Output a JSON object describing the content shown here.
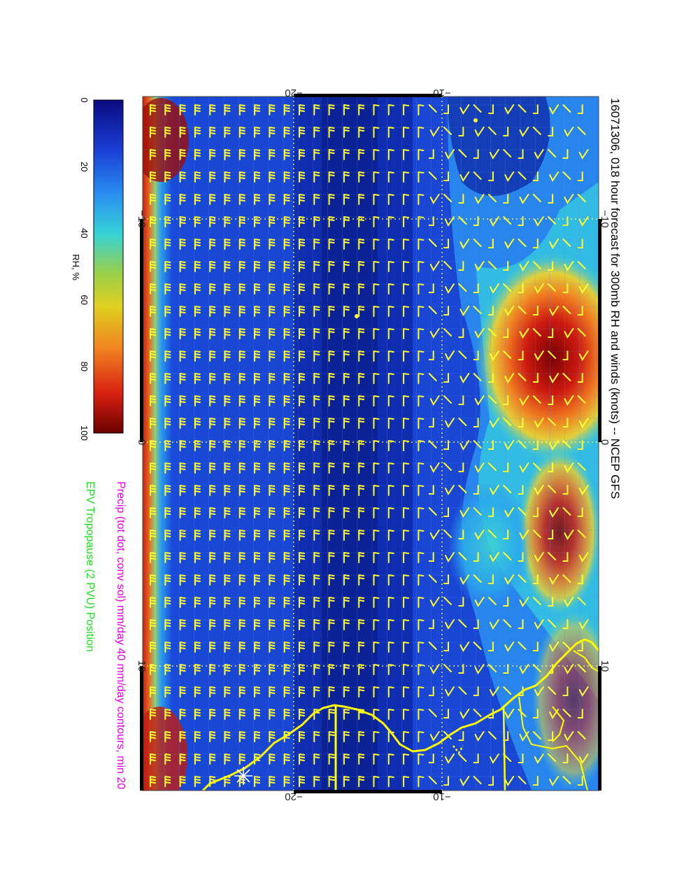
{
  "title": "16071306, 018 hour forecast for 300mb RH and winds (knots) -- NCEP GFS",
  "precip_label": "Precip (tot dot, conv sol) mm/day 40 mm/day contours, min 20",
  "tropopause_label": "EPV Tropopause (2 PVU) Position",
  "colorbar": {
    "title": "RH, %",
    "ticks": [
      "0",
      "20",
      "40",
      "60",
      "80",
      "100"
    ],
    "colors": [
      "#0a0a80",
      "#1a3fd6",
      "#2a8cf0",
      "#35d2d8",
      "#9ad04a",
      "#e0d020",
      "#f08020",
      "#d82010",
      "#6a0000"
    ]
  },
  "axes": {
    "top_ticks": [
      "−20",
      "−10"
    ],
    "bottom_ticks": [
      "−20",
      "−10"
    ],
    "left_ticks": [
      "−10",
      "0",
      "10"
    ],
    "right_ticks": [
      "−10",
      "0",
      "10"
    ]
  },
  "colors": {
    "barbs": "#ffff33",
    "coast": "#ffff00",
    "grid": "#ffff66"
  }
}
